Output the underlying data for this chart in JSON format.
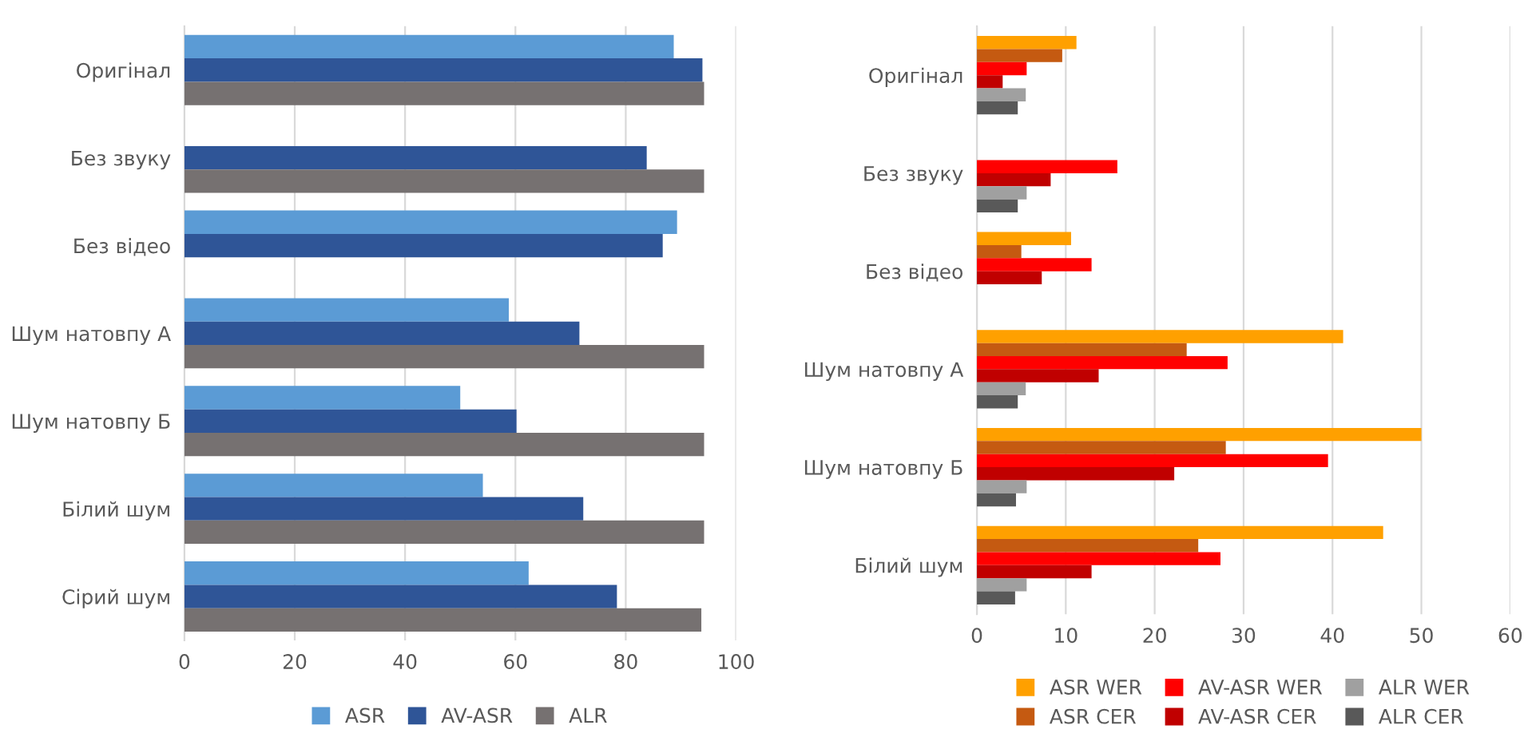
{
  "chart_data": [
    {
      "type": "bar",
      "orientation": "horizontal",
      "categories": [
        "Оригінал",
        "Без звуку",
        "Без відео",
        "Шум натовпу А",
        "Шум натовпу Б",
        "Білий шум",
        "Сірий шум"
      ],
      "series": [
        {
          "name": "ASR",
          "color": "#5b9bd5",
          "values": [
            88.7,
            null,
            89.3,
            58.8,
            50,
            54.1,
            62.4
          ]
        },
        {
          "name": "AV-ASR",
          "color": "#2f5597",
          "values": [
            93.9,
            83.8,
            86.7,
            71.6,
            60.2,
            72.3,
            78.4
          ]
        },
        {
          "name": "ALR",
          "color": "#767171",
          "values": [
            94.2,
            94.2,
            null,
            94.2,
            94.2,
            94.2,
            93.7
          ]
        }
      ],
      "xlim": [
        0,
        100
      ],
      "xticks": [
        0,
        20,
        40,
        60,
        80,
        100
      ],
      "grid": "x",
      "legend": "bottom"
    },
    {
      "type": "bar",
      "orientation": "horizontal",
      "categories": [
        "Оригінал",
        "Без звуку",
        "Без відео",
        "Шум натовпу А",
        "Шум натовпу Б",
        "Білий шум"
      ],
      "series": [
        {
          "name": "ASR WER",
          "color": "#ffa000",
          "values": [
            11.2,
            null,
            10.6,
            41.2,
            50,
            45.7
          ]
        },
        {
          "name": "ASR CER",
          "color": "#c55a11",
          "values": [
            9.6,
            null,
            5.0,
            23.6,
            28.0,
            24.9
          ]
        },
        {
          "name": "AV-ASR WER",
          "color": "#ff0000",
          "values": [
            5.6,
            15.8,
            12.9,
            28.2,
            39.5,
            27.4
          ]
        },
        {
          "name": "AV-ASR CER",
          "color": "#c00000",
          "values": [
            2.9,
            8.3,
            7.3,
            13.7,
            22.2,
            12.9
          ]
        },
        {
          "name": "ALR WER",
          "color": "#a0a0a0",
          "values": [
            5.5,
            5.6,
            null,
            5.5,
            5.6,
            5.6
          ]
        },
        {
          "name": "ALR CER",
          "color": "#595959",
          "values": [
            4.6,
            4.6,
            null,
            4.6,
            4.4,
            4.3
          ]
        }
      ],
      "xlim": [
        0,
        60
      ],
      "xticks": [
        0,
        10,
        20,
        30,
        40,
        50,
        60
      ],
      "grid": "x",
      "legend": "bottom"
    }
  ]
}
